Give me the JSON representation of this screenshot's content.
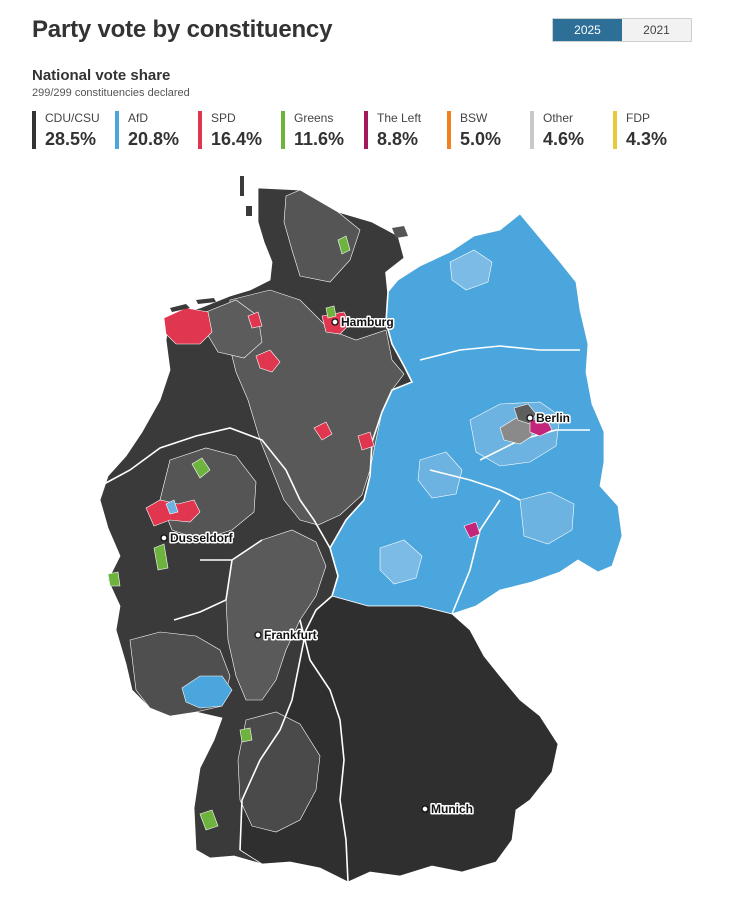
{
  "header": {
    "title": "Party vote by constituency",
    "years": [
      "2025",
      "2021"
    ],
    "selected_year": "2025"
  },
  "summary": {
    "heading": "National vote share",
    "declared": "299/299 constituencies declared"
  },
  "legend": [
    {
      "name": "CDU/CSU",
      "value": "28.5%",
      "color": "#333333"
    },
    {
      "name": "AfD",
      "value": "20.8%",
      "color": "#4aa6dc"
    },
    {
      "name": "SPD",
      "value": "16.4%",
      "color": "#e0364f"
    },
    {
      "name": "Greens",
      "value": "11.6%",
      "color": "#6fb33f"
    },
    {
      "name": "The Left",
      "value": "8.8%",
      "color": "#a4185e"
    },
    {
      "name": "BSW",
      "value": "5.0%",
      "color": "#f08020"
    },
    {
      "name": "Other",
      "value": "4.6%",
      "color": "#c8c8c8"
    },
    {
      "name": "FDP",
      "value": "4.3%",
      "color": "#e8c93a"
    }
  ],
  "map": {
    "cities": [
      "Hamburg",
      "Berlin",
      "Dusseldorf",
      "Frankfurt",
      "Munich"
    ]
  }
}
